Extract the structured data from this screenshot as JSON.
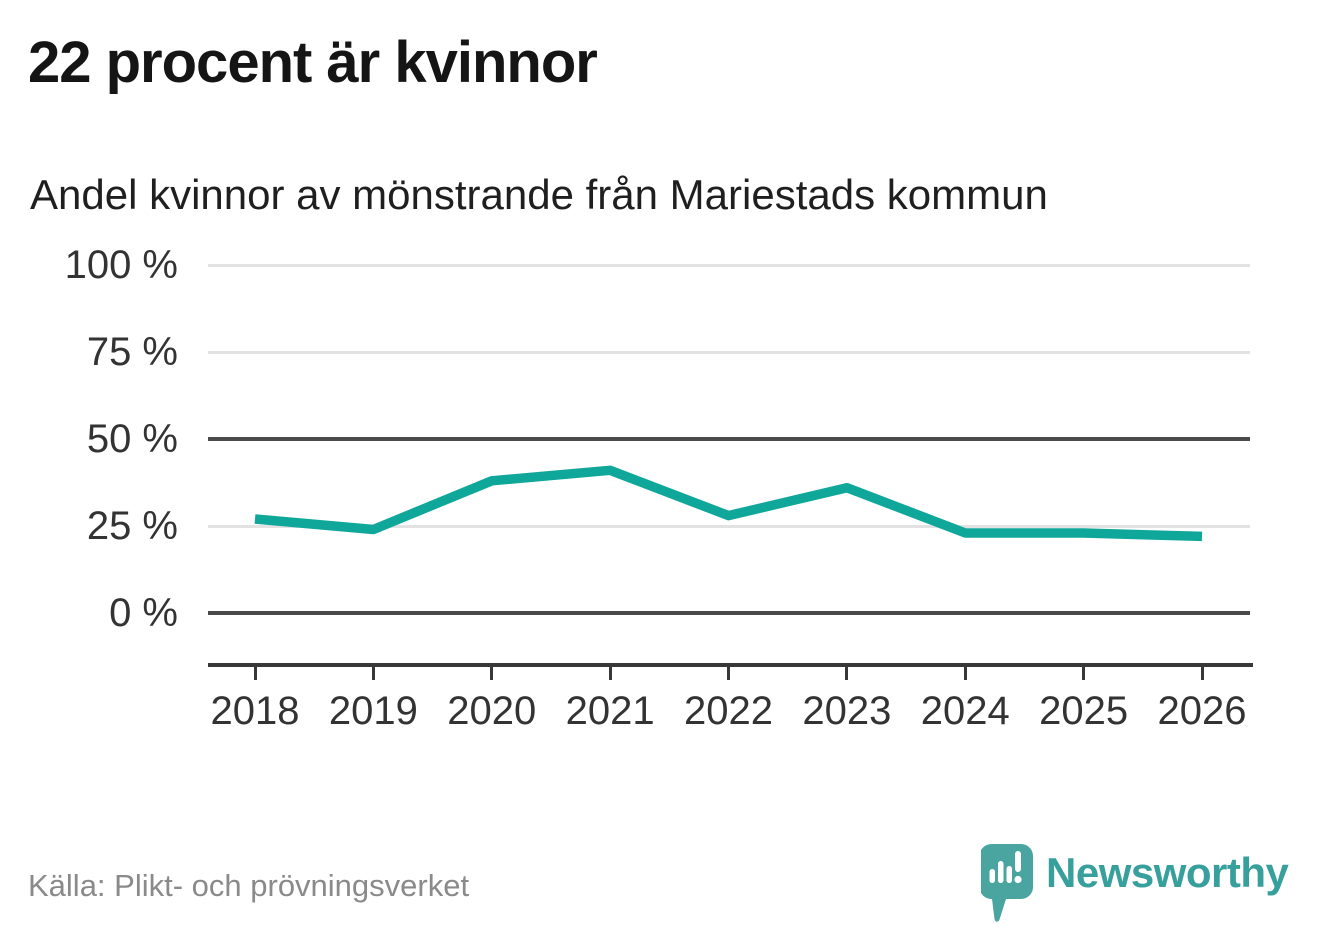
{
  "header": {
    "title": "22 procent är kvinnor",
    "subtitle": "Andel kvinnor av mönstrande från Mariestads kommun"
  },
  "chart_data": {
    "type": "line",
    "title": "Andel kvinnor av mönstrande från Mariestads kommun",
    "x": [
      "2018",
      "2019",
      "2020",
      "2021",
      "2022",
      "2023",
      "2024",
      "2025",
      "2026"
    ],
    "series": [
      {
        "name": "Andel kvinnor",
        "values": [
          27,
          24,
          38,
          41,
          28,
          36,
          23,
          23,
          22
        ]
      }
    ],
    "unit": "%",
    "ylim": [
      0,
      100
    ],
    "yticks": [
      {
        "label": "0 %",
        "value": 0,
        "strong": true
      },
      {
        "label": "25 %",
        "value": 25,
        "strong": false
      },
      {
        "label": "50 %",
        "value": 50,
        "strong": true
      },
      {
        "label": "75 %",
        "value": 75,
        "strong": false
      },
      {
        "label": "100 %",
        "value": 100,
        "strong": false
      }
    ],
    "grid": "horizontal",
    "legend": "none",
    "line_color": "#10a79b"
  },
  "footer": {
    "source": "Källa: Plikt- och prövningsverket",
    "brand": "Newsworthy"
  },
  "colors": {
    "accent": "#10a79b",
    "brand": "#38a09c",
    "logo_fill": "#4aa5a1",
    "grid_light": "#e2e2e2",
    "grid_strong": "#4a4a4a",
    "axis": "#383838",
    "text": "#333333",
    "muted": "#8a8a8a"
  }
}
